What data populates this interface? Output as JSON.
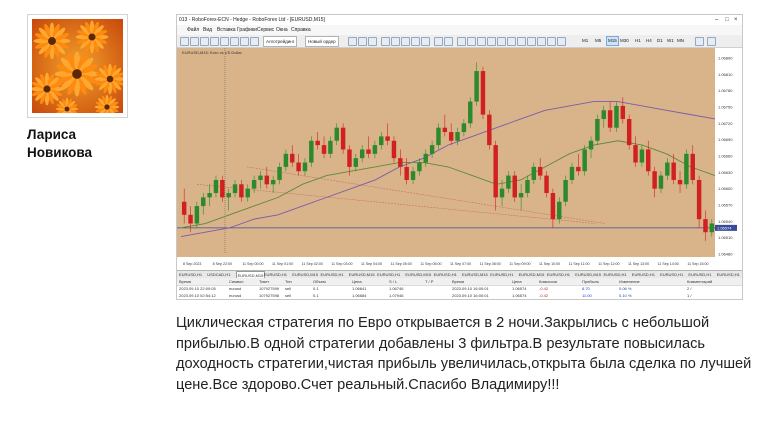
{
  "author": {
    "first_name": "Лариса",
    "last_name": "Новикова"
  },
  "screenshot": {
    "window_title": "013 - RoboForex-ECN - Hedge - RoboForex Ltd - [EURUSD,M15]",
    "menu": [
      "Файл",
      "Вид",
      "Вставка",
      "Графики",
      "Сервис",
      "Окна",
      "Справка"
    ],
    "toolbar": {
      "algo_trading": "Алготрейдинг",
      "new_order": "Новый ордер",
      "timeframes": [
        "M1",
        "M5",
        "M15",
        "M30",
        "H1",
        "H4",
        "D1",
        "W1",
        "MN"
      ],
      "active_timeframe": "M15"
    },
    "chart_header": "EURUSD,M15:  Euro vs US Dollar",
    "price_axis": [
      "1.06890",
      "1.06810",
      "1.06780",
      "1.06750",
      "1.06720",
      "1.06690",
      "1.06660",
      "1.06630",
      "1.06600",
      "1.06570",
      "1.06540",
      "1.06510",
      "1.06480"
    ],
    "current_price": "1.06574",
    "time_axis": [
      "8 Sep 2023",
      "8 Sep 22:00",
      "11 Sep 00:00",
      "11 Sep 01:00",
      "11 Sep 02:00",
      "11 Sep 03:00",
      "11 Sep 04:00",
      "11 Sep 05:00",
      "11 Sep 06:00",
      "11 Sep 07:00",
      "11 Sep 08:00",
      "11 Sep 09:00",
      "11 Sep 10:00",
      "11 Sep 11:00",
      "11 Sep 12:00",
      "11 Sep 13:00",
      "11 Sep 14:00",
      "11 Sep 15:00"
    ],
    "symbol_tabs": [
      "EURUSD,H1",
      "USDCAD,H1",
      "EURUSD,M15",
      "EURUSD,H1",
      "EURUSD,M15",
      "EURUSD,H1",
      "EURUSD,M15",
      "EURUSD,H1",
      "EURUSD,M15",
      "EURUSD,H1",
      "EURUSD,M15",
      "EURUSD,H1",
      "EURUSD,M15",
      "EURUSD,H1",
      "EURUSD,M15",
      "EURUSD,H1",
      "EURUSD,H1",
      "EURUSD,H1",
      "EURUSD,H1",
      "EURUSD,H1"
    ],
    "active_tab_index": 2,
    "orders": {
      "columns": [
        "Время",
        "Символ",
        "Тикет",
        "Тип",
        "Объем",
        "Цена",
        "S / L",
        "T / P",
        "Время",
        "Цена",
        "Комиссия",
        "Прибыль",
        "Изменение",
        "Комментарий"
      ],
      "rows": [
        {
          "time": "2023.09.10 22:00:05",
          "symbol": "eurusd",
          "ticket": "107927599",
          "type": "sell",
          "volume": "0.1",
          "price": "1.06641",
          "sl": "1.06746",
          "tp": "",
          "time2": "2023.09.10 16:00:01",
          "price2": "1.06574",
          "commission": "-0.42",
          "profit": "6.70",
          "change": "0.06 %",
          "comment": "2 /"
        },
        {
          "time": "2023.09.10 02:54:12",
          "symbol": "eurusd",
          "ticket": "107927598",
          "type": "sell",
          "volume": "0.1",
          "price": "1.06684",
          "sl": "1.07946",
          "tp": "",
          "time2": "2023.09.10 16:00:01",
          "price2": "1.06574",
          "commission": "-0.42",
          "profit": "11.00",
          "change": "0.10 %",
          "comment": "1 /"
        }
      ]
    }
  },
  "comment": {
    "lines": [
      "Циклическая стратегия по Евро открывается в 2 ночи.Закрылись с небольшой",
      "прибылью.В одной стратегии добавлены 3 фильтра.В результате повысилась",
      "доходность стратегии,чистая прибыль увеличилась,открыта была сделка по лучшей",
      "цене.Все здорово.Счет реальный.Спасибо Владимиру!!!"
    ]
  },
  "chart_data": {
    "type": "candlestick",
    "symbol": "EURUSD",
    "timeframe": "M15",
    "ylim": [
      1.0646,
      1.0691
    ],
    "ohlc": [
      [
        1.0658,
        1.0661,
        1.0653,
        1.0655
      ],
      [
        1.0655,
        1.0657,
        1.0651,
        1.0653
      ],
      [
        1.0653,
        1.0658,
        1.0652,
        1.0657
      ],
      [
        1.0657,
        1.066,
        1.0655,
        1.0659
      ],
      [
        1.0659,
        1.0662,
        1.0657,
        1.066
      ],
      [
        1.066,
        1.0664,
        1.0659,
        1.0663
      ],
      [
        1.0663,
        1.0664,
        1.0658,
        1.0659
      ],
      [
        1.0659,
        1.0661,
        1.0656,
        1.066
      ],
      [
        1.066,
        1.0663,
        1.0659,
        1.0662
      ],
      [
        1.0662,
        1.0663,
        1.0658,
        1.0659
      ],
      [
        1.0659,
        1.0662,
        1.0658,
        1.0661
      ],
      [
        1.0661,
        1.0664,
        1.066,
        1.0663
      ],
      [
        1.0663,
        1.0665,
        1.0661,
        1.0664
      ],
      [
        1.0664,
        1.0666,
        1.0661,
        1.0662
      ],
      [
        1.0662,
        1.0664,
        1.066,
        1.0663
      ],
      [
        1.0663,
        1.0667,
        1.0662,
        1.0666
      ],
      [
        1.0666,
        1.067,
        1.0665,
        1.0669
      ],
      [
        1.0669,
        1.0671,
        1.0666,
        1.0667
      ],
      [
        1.0667,
        1.0669,
        1.0664,
        1.0665
      ],
      [
        1.0665,
        1.0668,
        1.0664,
        1.0667
      ],
      [
        1.0667,
        1.0673,
        1.0666,
        1.0672
      ],
      [
        1.0672,
        1.0674,
        1.067,
        1.0671
      ],
      [
        1.0671,
        1.0673,
        1.0668,
        1.0669
      ],
      [
        1.0669,
        1.0673,
        1.0668,
        1.0672
      ],
      [
        1.0672,
        1.0676,
        1.0671,
        1.0675
      ],
      [
        1.0675,
        1.0676,
        1.0669,
        1.067
      ],
      [
        1.067,
        1.0671,
        1.0664,
        1.0666
      ],
      [
        1.0666,
        1.0669,
        1.0665,
        1.0668
      ],
      [
        1.0668,
        1.0671,
        1.0667,
        1.067
      ],
      [
        1.067,
        1.0673,
        1.0668,
        1.0669
      ],
      [
        1.0669,
        1.0672,
        1.0668,
        1.0671
      ],
      [
        1.0671,
        1.0674,
        1.067,
        1.0673
      ],
      [
        1.0673,
        1.0676,
        1.0671,
        1.0672
      ],
      [
        1.0672,
        1.0673,
        1.0667,
        1.0668
      ],
      [
        1.0668,
        1.067,
        1.0664,
        1.0666
      ],
      [
        1.0666,
        1.0668,
        1.0662,
        1.0663
      ],
      [
        1.0663,
        1.0666,
        1.0662,
        1.0665
      ],
      [
        1.0665,
        1.0668,
        1.0664,
        1.0667
      ],
      [
        1.0667,
        1.067,
        1.0666,
        1.0669
      ],
      [
        1.0669,
        1.0672,
        1.0668,
        1.0671
      ],
      [
        1.0671,
        1.0676,
        1.067,
        1.0675
      ],
      [
        1.0675,
        1.0678,
        1.0673,
        1.0674
      ],
      [
        1.0674,
        1.0676,
        1.0671,
        1.0672
      ],
      [
        1.0672,
        1.0675,
        1.0671,
        1.0674
      ],
      [
        1.0674,
        1.0677,
        1.0673,
        1.0676
      ],
      [
        1.0676,
        1.0682,
        1.0675,
        1.0681
      ],
      [
        1.0681,
        1.069,
        1.068,
        1.0688
      ],
      [
        1.0688,
        1.0689,
        1.0677,
        1.0678
      ],
      [
        1.0678,
        1.0679,
        1.067,
        1.0671
      ],
      [
        1.0671,
        1.0672,
        1.0656,
        1.0659
      ],
      [
        1.0659,
        1.0663,
        1.0657,
        1.0661
      ],
      [
        1.0661,
        1.0665,
        1.066,
        1.0664
      ],
      [
        1.0664,
        1.0665,
        1.0658,
        1.0659
      ],
      [
        1.0659,
        1.0662,
        1.0656,
        1.066
      ],
      [
        1.066,
        1.0664,
        1.0659,
        1.0663
      ],
      [
        1.0663,
        1.0667,
        1.0662,
        1.0666
      ],
      [
        1.0666,
        1.0668,
        1.0663,
        1.0664
      ],
      [
        1.0664,
        1.0665,
        1.0659,
        1.066
      ],
      [
        1.066,
        1.0661,
        1.0652,
        1.0654
      ],
      [
        1.0654,
        1.0659,
        1.0653,
        1.0658
      ],
      [
        1.0658,
        1.0664,
        1.0657,
        1.0663
      ],
      [
        1.0663,
        1.0667,
        1.0662,
        1.0666
      ],
      [
        1.0666,
        1.0669,
        1.0664,
        1.0665
      ],
      [
        1.0665,
        1.0671,
        1.0664,
        1.067
      ],
      [
        1.067,
        1.0673,
        1.0668,
        1.0672
      ],
      [
        1.0672,
        1.0678,
        1.0671,
        1.0677
      ],
      [
        1.0677,
        1.068,
        1.0675,
        1.0679
      ],
      [
        1.0679,
        1.0681,
        1.0674,
        1.0675
      ],
      [
        1.0675,
        1.0681,
        1.0674,
        1.068
      ],
      [
        1.068,
        1.0682,
        1.0676,
        1.0677
      ],
      [
        1.0677,
        1.0678,
        1.067,
        1.0671
      ],
      [
        1.0671,
        1.0673,
        1.0666,
        1.0667
      ],
      [
        1.0667,
        1.0671,
        1.0666,
        1.067
      ],
      [
        1.067,
        1.0672,
        1.0664,
        1.0665
      ],
      [
        1.0665,
        1.0666,
        1.0659,
        1.0661
      ],
      [
        1.0661,
        1.0665,
        1.066,
        1.0664
      ],
      [
        1.0664,
        1.0668,
        1.0663,
        1.0667
      ],
      [
        1.0667,
        1.0669,
        1.0662,
        1.0663
      ],
      [
        1.0663,
        1.0665,
        1.066,
        1.0662
      ],
      [
        1.0662,
        1.067,
        1.0661,
        1.0669
      ],
      [
        1.0669,
        1.0671,
        1.0662,
        1.0663
      ],
      [
        1.0663,
        1.0664,
        1.0652,
        1.0654
      ],
      [
        1.0654,
        1.0656,
        1.0649,
        1.0651
      ],
      [
        1.0651,
        1.0654,
        1.065,
        1.0653
      ]
    ],
    "ma_slow": [
      1.065,
      1.0651,
      1.0652,
      1.0654,
      1.0655,
      1.0657,
      1.0659,
      1.0661,
      1.0663,
      1.0666,
      1.0668,
      1.0671,
      1.0673,
      1.0675,
      1.0677,
      1.0679,
      1.068,
      1.0681,
      1.0681,
      1.068,
      1.0679,
      1.0678,
      1.0677
    ],
    "ma_fast": [
      1.0655,
      1.0657,
      1.0658,
      1.066,
      1.0661,
      1.0663,
      1.0664,
      1.0665,
      1.0666,
      1.0667,
      1.0667,
      1.0668,
      1.0668,
      1.0669,
      1.0669,
      1.067,
      1.067,
      1.0671,
      1.0671,
      1.0671,
      1.0669,
      1.0667,
      1.0665
    ],
    "ma_mid": [
      1.0652,
      1.0653,
      1.0655,
      1.0657,
      1.0659,
      1.0662,
      1.0664,
      1.0665,
      1.0666,
      1.0667,
      1.0667,
      1.0666,
      1.0664,
      1.0662,
      1.0663,
      1.0666,
      1.0669,
      1.0671,
      1.0672,
      1.0671,
      1.0669,
      1.0666,
      1.0664
    ]
  }
}
